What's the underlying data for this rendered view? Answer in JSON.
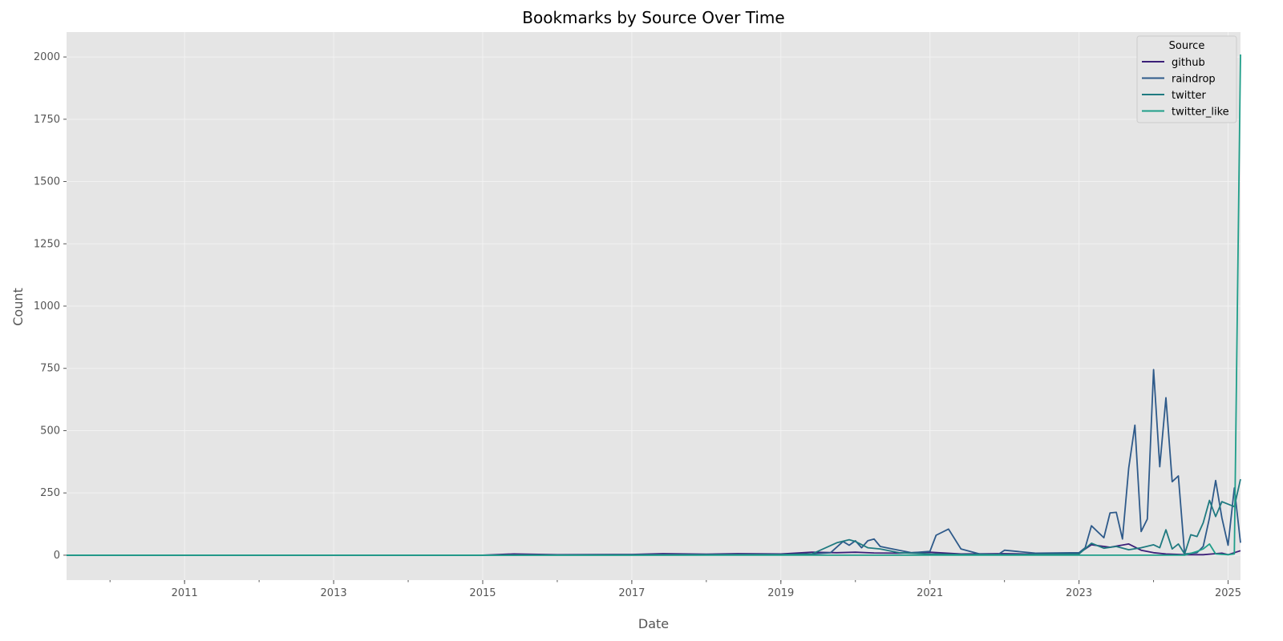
{
  "chart_data": {
    "type": "line",
    "title": "Bookmarks by Source Over Time",
    "xlabel": "Date",
    "ylabel": "Count",
    "x_range": [
      "2009-06",
      "2025-03"
    ],
    "ylim": [
      -100,
      2100
    ],
    "y_ticks": [
      0,
      250,
      500,
      750,
      1000,
      1250,
      1500,
      1750,
      2000
    ],
    "x_ticks": [
      "2011",
      "2013",
      "2015",
      "2017",
      "2019",
      "2021",
      "2023",
      "2025"
    ],
    "grid": true,
    "legend_title": "Source",
    "legend_position": "top-right",
    "colors": {
      "plot_background": "#e5e5e5",
      "grid": "#f2f2f2"
    },
    "series": [
      {
        "name": "github",
        "color": "#3b1f78",
        "points": [
          [
            "2009-06",
            0
          ],
          [
            "2013-01",
            0
          ],
          [
            "2015-01",
            0
          ],
          [
            "2015-06",
            5
          ],
          [
            "2016-01",
            2
          ],
          [
            "2017-01",
            3
          ],
          [
            "2017-06",
            6
          ],
          [
            "2018-01",
            4
          ],
          [
            "2018-06",
            6
          ],
          [
            "2019-01",
            5
          ],
          [
            "2019-06",
            12
          ],
          [
            "2019-10",
            10
          ],
          [
            "2020-01",
            12
          ],
          [
            "2020-04",
            9
          ],
          [
            "2020-08",
            8
          ],
          [
            "2021-01",
            12
          ],
          [
            "2021-06",
            5
          ],
          [
            "2022-01",
            6
          ],
          [
            "2022-06",
            4
          ],
          [
            "2023-01",
            8
          ],
          [
            "2023-03",
            42
          ],
          [
            "2023-06",
            32
          ],
          [
            "2023-09",
            45
          ],
          [
            "2023-11",
            20
          ],
          [
            "2024-01",
            10
          ],
          [
            "2024-03",
            5
          ],
          [
            "2024-06",
            2
          ],
          [
            "2024-09",
            2
          ],
          [
            "2024-12",
            8
          ],
          [
            "2025-01",
            2
          ],
          [
            "2025-03",
            18
          ]
        ]
      },
      {
        "name": "raindrop",
        "color": "#2e5a8a",
        "points": [
          [
            "2009-06",
            0
          ],
          [
            "2013-01",
            0
          ],
          [
            "2015-01",
            0
          ],
          [
            "2017-01",
            2
          ],
          [
            "2019-01",
            3
          ],
          [
            "2019-06",
            5
          ],
          [
            "2019-09",
            10
          ],
          [
            "2019-11",
            55
          ],
          [
            "2019-12",
            40
          ],
          [
            "2020-01",
            58
          ],
          [
            "2020-02",
            30
          ],
          [
            "2020-03",
            58
          ],
          [
            "2020-04",
            65
          ],
          [
            "2020-05",
            35
          ],
          [
            "2020-06",
            30
          ],
          [
            "2020-08",
            20
          ],
          [
            "2020-10",
            10
          ],
          [
            "2021-01",
            15
          ],
          [
            "2021-02",
            80
          ],
          [
            "2021-04",
            105
          ],
          [
            "2021-06",
            25
          ],
          [
            "2021-09",
            5
          ],
          [
            "2021-12",
            3
          ],
          [
            "2022-01",
            20
          ],
          [
            "2022-06",
            8
          ],
          [
            "2023-01",
            10
          ],
          [
            "2023-02",
            30
          ],
          [
            "2023-03",
            118
          ],
          [
            "2023-05",
            70
          ],
          [
            "2023-06",
            170
          ],
          [
            "2023-07",
            172
          ],
          [
            "2023-08",
            65
          ],
          [
            "2023-09",
            350
          ],
          [
            "2023-10",
            522
          ],
          [
            "2023-11",
            95
          ],
          [
            "2023-12",
            145
          ],
          [
            "2024-01",
            745
          ],
          [
            "2024-02",
            355
          ],
          [
            "2024-03",
            632
          ],
          [
            "2024-04",
            295
          ],
          [
            "2024-05",
            318
          ],
          [
            "2024-06",
            5
          ],
          [
            "2024-08",
            10
          ],
          [
            "2024-09",
            35
          ],
          [
            "2024-10",
            150
          ],
          [
            "2024-11",
            300
          ],
          [
            "2024-12",
            150
          ],
          [
            "2025-01",
            40
          ],
          [
            "2025-02",
            270
          ],
          [
            "2025-03",
            50
          ]
        ]
      },
      {
        "name": "twitter",
        "color": "#1f7a80",
        "points": [
          [
            "2009-06",
            0
          ],
          [
            "2013-01",
            0
          ],
          [
            "2015-01",
            0
          ],
          [
            "2017-01",
            0
          ],
          [
            "2019-01",
            2
          ],
          [
            "2019-06",
            5
          ],
          [
            "2019-10",
            50
          ],
          [
            "2019-12",
            62
          ],
          [
            "2020-01",
            55
          ],
          [
            "2020-03",
            30
          ],
          [
            "2020-05",
            25
          ],
          [
            "2020-08",
            10
          ],
          [
            "2021-01",
            5
          ],
          [
            "2021-06",
            3
          ],
          [
            "2022-01",
            2
          ],
          [
            "2023-01",
            5
          ],
          [
            "2023-03",
            48
          ],
          [
            "2023-05",
            28
          ],
          [
            "2023-07",
            35
          ],
          [
            "2023-09",
            22
          ],
          [
            "2023-11",
            30
          ],
          [
            "2024-01",
            42
          ],
          [
            "2024-02",
            30
          ],
          [
            "2024-03",
            102
          ],
          [
            "2024-04",
            25
          ],
          [
            "2024-05",
            45
          ],
          [
            "2024-06",
            5
          ],
          [
            "2024-07",
            82
          ],
          [
            "2024-08",
            75
          ],
          [
            "2024-09",
            130
          ],
          [
            "2024-10",
            220
          ],
          [
            "2024-11",
            155
          ],
          [
            "2024-12",
            215
          ],
          [
            "2025-01",
            205
          ],
          [
            "2025-02",
            195
          ],
          [
            "2025-03",
            305
          ]
        ]
      },
      {
        "name": "twitter_like",
        "color": "#1f9e89",
        "points": [
          [
            "2009-06",
            0
          ],
          [
            "2013-01",
            0
          ],
          [
            "2015-01",
            0
          ],
          [
            "2017-01",
            0
          ],
          [
            "2019-01",
            0
          ],
          [
            "2021-01",
            0
          ],
          [
            "2023-01",
            0
          ],
          [
            "2024-06",
            0
          ],
          [
            "2024-08",
            15
          ],
          [
            "2024-09",
            25
          ],
          [
            "2024-10",
            45
          ],
          [
            "2024-11",
            5
          ],
          [
            "2025-01",
            2
          ],
          [
            "2025-02",
            5
          ],
          [
            "2025-03",
            2010
          ]
        ]
      }
    ]
  }
}
